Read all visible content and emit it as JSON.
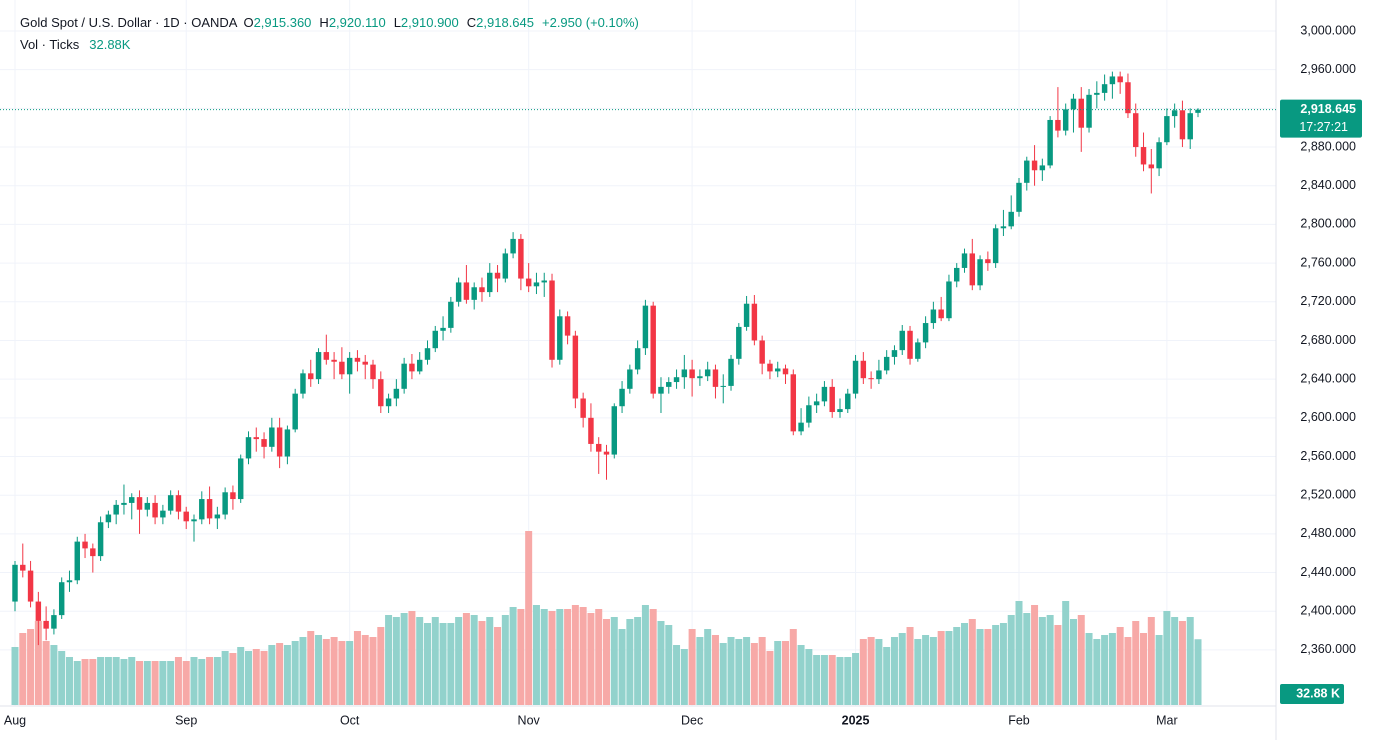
{
  "header": {
    "symbol": "Gold Spot / U.S. Dollar · 1D · OANDA",
    "o_label": "O",
    "open": "2,915.360",
    "h_label": "H",
    "high": "2,920.110",
    "l_label": "L",
    "low": "2,910.900",
    "c_label": "C",
    "close": "2,918.645",
    "change": "+2.950 (+0.10%)",
    "vol_label": "Vol · Ticks",
    "vol_value": "32.88K",
    "countdown": "17:27:21",
    "vol_badge": "32.88 K"
  },
  "chart_data": {
    "type": "candlestick",
    "up_color": "#089981",
    "down_color": "#f23645",
    "volume_up_color": "#92d2cc",
    "volume_down_color": "#f7a9a7",
    "grid": true,
    "ylim": [
      2320,
      3000
    ],
    "yticks": [
      {
        "value": 2360,
        "label": "2,360.000"
      },
      {
        "value": 2400,
        "label": "2,400.000"
      },
      {
        "value": 2440,
        "label": "2,440.000"
      },
      {
        "value": 2480,
        "label": "2,480.000"
      },
      {
        "value": 2520,
        "label": "2,520.000"
      },
      {
        "value": 2560,
        "label": "2,560.000"
      },
      {
        "value": 2600,
        "label": "2,600.000"
      },
      {
        "value": 2640,
        "label": "2,640.000"
      },
      {
        "value": 2680,
        "label": "2,680.000"
      },
      {
        "value": 2720,
        "label": "2,720.000"
      },
      {
        "value": 2760,
        "label": "2,760.000"
      },
      {
        "value": 2800,
        "label": "2,800.000"
      },
      {
        "value": 2840,
        "label": "2,840.000"
      },
      {
        "value": 2880,
        "label": "2,880.000"
      },
      {
        "value": 2920,
        "label": "2,920.000"
      },
      {
        "value": 2960,
        "label": "2,960.000"
      },
      {
        "value": 3000,
        "label": "3,000.000"
      }
    ],
    "volume_ylim": [
      0,
      90
    ],
    "categories": [
      "Aug",
      null,
      null,
      null,
      null,
      null,
      null,
      null,
      null,
      null,
      null,
      null,
      null,
      null,
      null,
      null,
      null,
      null,
      null,
      null,
      null,
      null,
      "Sep",
      null,
      null,
      null,
      null,
      null,
      null,
      null,
      null,
      null,
      null,
      null,
      null,
      null,
      null,
      null,
      null,
      null,
      null,
      null,
      null,
      "Oct",
      null,
      null,
      null,
      null,
      null,
      null,
      null,
      null,
      null,
      null,
      null,
      null,
      null,
      null,
      null,
      null,
      null,
      null,
      null,
      null,
      null,
      null,
      "Nov",
      null,
      null,
      null,
      null,
      null,
      null,
      null,
      null,
      null,
      null,
      null,
      null,
      null,
      null,
      null,
      null,
      null,
      null,
      null,
      null,
      "Dec",
      null,
      null,
      null,
      null,
      null,
      null,
      null,
      null,
      null,
      null,
      null,
      null,
      null,
      null,
      null,
      null,
      null,
      null,
      null,
      null,
      "2025",
      null,
      null,
      null,
      null,
      null,
      null,
      null,
      null,
      null,
      null,
      null,
      null,
      null,
      null,
      null,
      null,
      null,
      null,
      null,
      null,
      "Feb",
      null,
      null,
      null,
      null,
      null,
      null,
      null,
      null,
      null,
      null,
      null,
      null,
      null,
      null,
      null,
      null,
      null,
      null,
      "Mar",
      null,
      null,
      null,
      null
    ],
    "candles": [
      [
        2410,
        2452,
        2400,
        2448
      ],
      [
        2448,
        2470,
        2435,
        2442
      ],
      [
        2442,
        2452,
        2404,
        2410
      ],
      [
        2410,
        2420,
        2365,
        2390
      ],
      [
        2390,
        2405,
        2370,
        2382
      ],
      [
        2382,
        2402,
        2376,
        2396
      ],
      [
        2396,
        2435,
        2392,
        2430
      ],
      [
        2430,
        2442,
        2420,
        2432
      ],
      [
        2432,
        2477,
        2428,
        2472
      ],
      [
        2472,
        2480,
        2455,
        2465
      ],
      [
        2465,
        2470,
        2440,
        2457
      ],
      [
        2457,
        2498,
        2452,
        2492
      ],
      [
        2492,
        2504,
        2486,
        2500
      ],
      [
        2500,
        2515,
        2490,
        2510
      ],
      [
        2510,
        2531,
        2500,
        2512
      ],
      [
        2512,
        2522,
        2495,
        2518
      ],
      [
        2518,
        2525,
        2480,
        2505
      ],
      [
        2505,
        2518,
        2498,
        2512
      ],
      [
        2512,
        2520,
        2490,
        2497
      ],
      [
        2497,
        2510,
        2490,
        2504
      ],
      [
        2504,
        2525,
        2500,
        2520
      ],
      [
        2520,
        2525,
        2495,
        2503
      ],
      [
        2503,
        2508,
        2485,
        2493
      ],
      [
        2493,
        2500,
        2472,
        2495
      ],
      [
        2495,
        2524,
        2490,
        2516
      ],
      [
        2516,
        2529,
        2490,
        2496
      ],
      [
        2496,
        2508,
        2485,
        2500
      ],
      [
        2500,
        2528,
        2495,
        2523
      ],
      [
        2523,
        2530,
        2505,
        2516
      ],
      [
        2516,
        2562,
        2512,
        2558
      ],
      [
        2558,
        2586,
        2552,
        2580
      ],
      [
        2580,
        2590,
        2565,
        2578
      ],
      [
        2578,
        2585,
        2558,
        2570
      ],
      [
        2570,
        2600,
        2565,
        2590
      ],
      [
        2590,
        2600,
        2548,
        2560
      ],
      [
        2560,
        2592,
        2552,
        2588
      ],
      [
        2588,
        2630,
        2585,
        2625
      ],
      [
        2625,
        2650,
        2620,
        2646
      ],
      [
        2646,
        2660,
        2632,
        2640
      ],
      [
        2640,
        2672,
        2635,
        2668
      ],
      [
        2668,
        2686,
        2655,
        2660
      ],
      [
        2660,
        2668,
        2640,
        2658
      ],
      [
        2658,
        2673,
        2640,
        2645
      ],
      [
        2645,
        2668,
        2625,
        2662
      ],
      [
        2662,
        2670,
        2648,
        2658
      ],
      [
        2658,
        2665,
        2640,
        2655
      ],
      [
        2655,
        2660,
        2630,
        2640
      ],
      [
        2640,
        2648,
        2605,
        2612
      ],
      [
        2612,
        2625,
        2605,
        2620
      ],
      [
        2620,
        2640,
        2612,
        2630
      ],
      [
        2630,
        2662,
        2625,
        2656
      ],
      [
        2656,
        2666,
        2640,
        2648
      ],
      [
        2648,
        2668,
        2645,
        2660
      ],
      [
        2660,
        2680,
        2655,
        2672
      ],
      [
        2672,
        2695,
        2668,
        2690
      ],
      [
        2690,
        2705,
        2680,
        2693
      ],
      [
        2693,
        2725,
        2688,
        2720
      ],
      [
        2720,
        2745,
        2715,
        2740
      ],
      [
        2740,
        2758,
        2718,
        2722
      ],
      [
        2722,
        2740,
        2712,
        2735
      ],
      [
        2735,
        2745,
        2720,
        2730
      ],
      [
        2730,
        2760,
        2725,
        2750
      ],
      [
        2750,
        2758,
        2730,
        2744
      ],
      [
        2744,
        2775,
        2740,
        2770
      ],
      [
        2770,
        2792,
        2765,
        2785
      ],
      [
        2785,
        2790,
        2732,
        2744
      ],
      [
        2744,
        2760,
        2730,
        2736
      ],
      [
        2736,
        2750,
        2728,
        2740
      ],
      [
        2740,
        2750,
        2725,
        2742
      ],
      [
        2742,
        2749,
        2652,
        2660
      ],
      [
        2660,
        2712,
        2655,
        2705
      ],
      [
        2705,
        2710,
        2676,
        2685
      ],
      [
        2685,
        2690,
        2610,
        2620
      ],
      [
        2620,
        2626,
        2590,
        2600
      ],
      [
        2600,
        2615,
        2565,
        2573
      ],
      [
        2573,
        2580,
        2542,
        2565
      ],
      [
        2565,
        2572,
        2536,
        2562
      ],
      [
        2562,
        2615,
        2558,
        2612
      ],
      [
        2612,
        2638,
        2605,
        2630
      ],
      [
        2630,
        2655,
        2625,
        2650
      ],
      [
        2650,
        2680,
        2645,
        2672
      ],
      [
        2672,
        2722,
        2665,
        2716
      ],
      [
        2716,
        2720,
        2620,
        2625
      ],
      [
        2625,
        2642,
        2605,
        2632
      ],
      [
        2632,
        2642,
        2625,
        2637
      ],
      [
        2637,
        2650,
        2630,
        2642
      ],
      [
        2642,
        2665,
        2630,
        2650
      ],
      [
        2650,
        2660,
        2622,
        2641
      ],
      [
        2641,
        2650,
        2633,
        2643
      ],
      [
        2643,
        2658,
        2638,
        2650
      ],
      [
        2650,
        2655,
        2620,
        2632
      ],
      [
        2632,
        2645,
        2615,
        2633
      ],
      [
        2633,
        2665,
        2628,
        2661
      ],
      [
        2661,
        2698,
        2655,
        2694
      ],
      [
        2694,
        2726,
        2690,
        2718
      ],
      [
        2718,
        2727,
        2675,
        2680
      ],
      [
        2680,
        2685,
        2645,
        2656
      ],
      [
        2656,
        2660,
        2640,
        2648
      ],
      [
        2648,
        2658,
        2642,
        2651
      ],
      [
        2651,
        2655,
        2635,
        2645
      ],
      [
        2645,
        2650,
        2582,
        2586
      ],
      [
        2586,
        2610,
        2582,
        2595
      ],
      [
        2595,
        2622,
        2590,
        2613
      ],
      [
        2613,
        2625,
        2605,
        2617
      ],
      [
        2617,
        2638,
        2612,
        2632
      ],
      [
        2632,
        2640,
        2600,
        2606
      ],
      [
        2606,
        2620,
        2600,
        2609
      ],
      [
        2609,
        2630,
        2605,
        2625
      ],
      [
        2625,
        2665,
        2620,
        2659
      ],
      [
        2659,
        2668,
        2635,
        2641
      ],
      [
        2641,
        2648,
        2630,
        2640
      ],
      [
        2640,
        2660,
        2635,
        2649
      ],
      [
        2649,
        2670,
        2645,
        2663
      ],
      [
        2663,
        2675,
        2655,
        2670
      ],
      [
        2670,
        2696,
        2665,
        2690
      ],
      [
        2690,
        2695,
        2655,
        2661
      ],
      [
        2661,
        2682,
        2658,
        2678
      ],
      [
        2678,
        2705,
        2672,
        2698
      ],
      [
        2698,
        2720,
        2692,
        2712
      ],
      [
        2712,
        2725,
        2700,
        2703
      ],
      [
        2703,
        2748,
        2700,
        2741
      ],
      [
        2741,
        2760,
        2735,
        2755
      ],
      [
        2755,
        2775,
        2750,
        2770
      ],
      [
        2770,
        2785,
        2732,
        2737
      ],
      [
        2737,
        2768,
        2732,
        2764
      ],
      [
        2764,
        2772,
        2752,
        2760
      ],
      [
        2760,
        2800,
        2755,
        2796
      ],
      [
        2796,
        2815,
        2788,
        2798
      ],
      [
        2798,
        2830,
        2795,
        2813
      ],
      [
        2813,
        2848,
        2808,
        2843
      ],
      [
        2843,
        2870,
        2835,
        2866
      ],
      [
        2866,
        2882,
        2840,
        2856
      ],
      [
        2856,
        2868,
        2845,
        2861
      ],
      [
        2861,
        2912,
        2858,
        2908
      ],
      [
        2908,
        2942,
        2890,
        2897
      ],
      [
        2897,
        2925,
        2892,
        2919
      ],
      [
        2919,
        2935,
        2895,
        2930
      ],
      [
        2930,
        2942,
        2875,
        2900
      ],
      [
        2900,
        2940,
        2895,
        2934
      ],
      [
        2934,
        2948,
        2920,
        2936
      ],
      [
        2936,
        2955,
        2928,
        2945
      ],
      [
        2945,
        2958,
        2930,
        2953
      ],
      [
        2953,
        2958,
        2935,
        2947
      ],
      [
        2947,
        2956,
        2910,
        2915
      ],
      [
        2915,
        2925,
        2870,
        2880
      ],
      [
        2880,
        2895,
        2855,
        2862
      ],
      [
        2862,
        2878,
        2832,
        2858
      ],
      [
        2858,
        2890,
        2850,
        2885
      ],
      [
        2885,
        2920,
        2882,
        2912
      ],
      [
        2912,
        2925,
        2900,
        2918
      ],
      [
        2918,
        2928,
        2880,
        2888
      ],
      [
        2888,
        2920,
        2878,
        2915
      ],
      [
        2915.36,
        2920.11,
        2910.9,
        2918.645
      ]
    ],
    "volume": [
      29,
      36,
      38,
      42,
      32,
      30,
      27,
      24,
      22,
      23,
      23,
      24,
      24,
      24,
      23,
      24,
      22,
      22,
      22,
      22,
      22,
      24,
      22,
      24,
      23,
      24,
      24,
      27,
      26,
      29,
      27,
      28,
      27,
      30,
      31,
      30,
      32,
      34,
      37,
      35,
      33,
      34,
      32,
      32,
      37,
      35,
      34,
      39,
      45,
      44,
      46,
      47,
      44,
      41,
      44,
      41,
      41,
      44,
      46,
      45,
      42,
      44,
      39,
      45,
      49,
      48,
      87,
      50,
      48,
      47,
      48,
      48,
      50,
      49,
      46,
      48,
      43,
      44,
      38,
      43,
      44,
      50,
      48,
      42,
      40,
      30,
      28,
      38,
      34,
      38,
      35,
      31,
      34,
      33,
      34,
      31,
      34,
      27,
      32,
      32,
      38,
      30,
      28,
      25,
      25,
      25,
      24,
      24,
      26,
      33,
      34,
      33,
      29,
      34,
      36,
      39,
      33,
      35,
      34,
      37,
      37,
      39,
      41,
      43,
      38,
      38,
      40,
      41,
      45,
      52,
      46,
      50,
      44,
      45,
      40,
      52,
      43,
      45,
      36,
      33,
      35,
      36,
      39,
      34,
      42,
      36,
      44,
      35,
      47,
      44,
      42,
      44,
      32.88
    ]
  }
}
